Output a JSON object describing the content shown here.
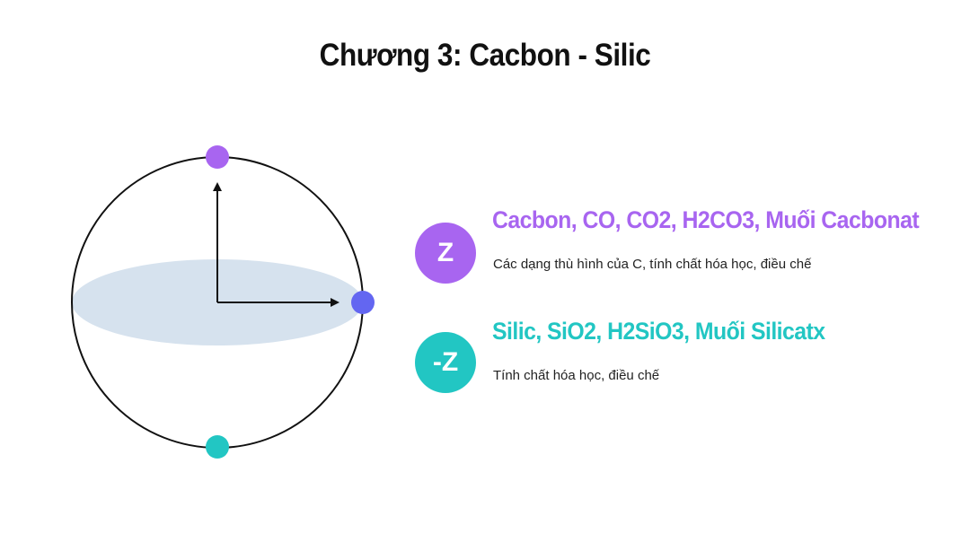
{
  "slide": {
    "title": "Chương 3: Cacbon - Silic"
  },
  "items": [
    {
      "badge": "Z",
      "heading": "Cacbon, CO, CO2, H2CO3, Muối Cacbonat",
      "description": "Các dạng thù hình của C, tính chất hóa học, điều chế",
      "color": "#A865F0"
    },
    {
      "badge": "-Z",
      "heading": "Silic, SiO2, H2SiO3, Muối Silicatx",
      "description": "Tính chất hóa học, điều chế",
      "color": "#22C6C3"
    }
  ],
  "sphere": {
    "top_dot_color": "#A865F0",
    "right_dot_color": "#6366F1",
    "bottom_dot_color": "#22C6C3",
    "equator_color": "#D6E2EE",
    "outline_color": "#111111"
  }
}
